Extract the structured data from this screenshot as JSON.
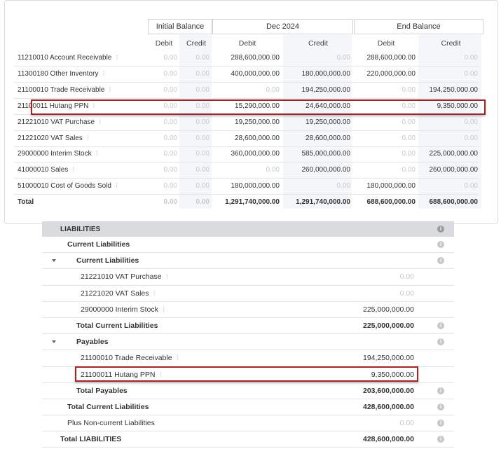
{
  "trial_balance": {
    "groups": [
      "Initial Balance",
      "Dec 2024",
      "End Balance"
    ],
    "subheaders": [
      "Debit",
      "Credit",
      "Debit",
      "Credit",
      "Debit",
      "Credit"
    ],
    "rows": [
      {
        "account": "11210010 Account Receivable",
        "ib_debit": "0.00",
        "ib_credit": "0.00",
        "p_debit": "288,600,000.00",
        "p_credit": "0.00",
        "eb_debit": "288,600,000.00",
        "eb_credit": "0.00"
      },
      {
        "account": "11300180 Other Inventory",
        "ib_debit": "0.00",
        "ib_credit": "0.00",
        "p_debit": "400,000,000.00",
        "p_credit": "180,000,000.00",
        "eb_debit": "220,000,000.00",
        "eb_credit": "0.00"
      },
      {
        "account": "21100010 Trade Receivable",
        "ib_debit": "0.00",
        "ib_credit": "0.00",
        "p_debit": "0.00",
        "p_credit": "194,250,000.00",
        "eb_debit": "0.00",
        "eb_credit": "194,250,000.00"
      },
      {
        "account": "21100011 Hutang PPN",
        "ib_debit": "0.00",
        "ib_credit": "0.00",
        "p_debit": "15,290,000.00",
        "p_credit": "24,640,000.00",
        "eb_debit": "0.00",
        "eb_credit": "9,350,000.00"
      },
      {
        "account": "21221010 VAT Purchase",
        "ib_debit": "0.00",
        "ib_credit": "0.00",
        "p_debit": "19,250,000.00",
        "p_credit": "19,250,000.00",
        "eb_debit": "0.00",
        "eb_credit": "0.00"
      },
      {
        "account": "21221020 VAT Sales",
        "ib_debit": "0.00",
        "ib_credit": "0.00",
        "p_debit": "28,600,000.00",
        "p_credit": "28,600,000.00",
        "eb_debit": "0.00",
        "eb_credit": "0.00"
      },
      {
        "account": "29000000 Interim Stock",
        "ib_debit": "0.00",
        "ib_credit": "0.00",
        "p_debit": "360,000,000.00",
        "p_credit": "585,000,000.00",
        "eb_debit": "0.00",
        "eb_credit": "225,000,000.00"
      },
      {
        "account": "41000010 Sales",
        "ib_debit": "0.00",
        "ib_credit": "0.00",
        "p_debit": "0.00",
        "p_credit": "260,000,000.00",
        "eb_debit": "0.00",
        "eb_credit": "260,000,000.00"
      },
      {
        "account": "51000010 Cost of Goods Sold",
        "ib_debit": "0.00",
        "ib_credit": "0.00",
        "p_debit": "180,000,000.00",
        "p_credit": "0.00",
        "eb_debit": "180,000,000.00",
        "eb_credit": "0.00"
      }
    ],
    "total": {
      "account": "Total",
      "ib_debit": "0.00",
      "ib_credit": "0.00",
      "p_debit": "1,291,740,000.00",
      "p_credit": "1,291,740,000.00",
      "eb_debit": "688,600,000.00",
      "eb_credit": "688,600,000.00"
    },
    "row_menu_icon": "vertical-dots-icon"
  },
  "liabilities": {
    "header": "LIABILITIES",
    "current_liabilities": "Current Liabilities",
    "current_liabilities_sub": "Current Liabilities",
    "current_items": [
      {
        "label": "21221010 VAT Purchase",
        "amount": "0.00"
      },
      {
        "label": "21221020 VAT Sales",
        "amount": "0.00"
      },
      {
        "label": "29000000 Interim Stock",
        "amount": "225,000,000.00"
      }
    ],
    "total_current_sub": {
      "label": "Total Current Liabilities",
      "amount": "225,000,000.00"
    },
    "payables": "Payables",
    "payables_items": [
      {
        "label": "21100010 Trade Receivable",
        "amount": "194,250,000.00"
      },
      {
        "label": "21100011 Hutang PPN",
        "amount": "9,350,000.00"
      }
    ],
    "total_payables": {
      "label": "Total Payables",
      "amount": "203,600,000.00"
    },
    "total_current": {
      "label": "Total Current Liabilities",
      "amount": "428,600,000.00"
    },
    "non_current": {
      "label": "Plus Non-current Liabilities",
      "amount": "0.00"
    },
    "total_liabilities": {
      "label": "Total LIABILITIES",
      "amount": "428,600,000.00"
    },
    "info_icon": "info-icon",
    "collapse_icon": "caret-down-icon"
  }
}
